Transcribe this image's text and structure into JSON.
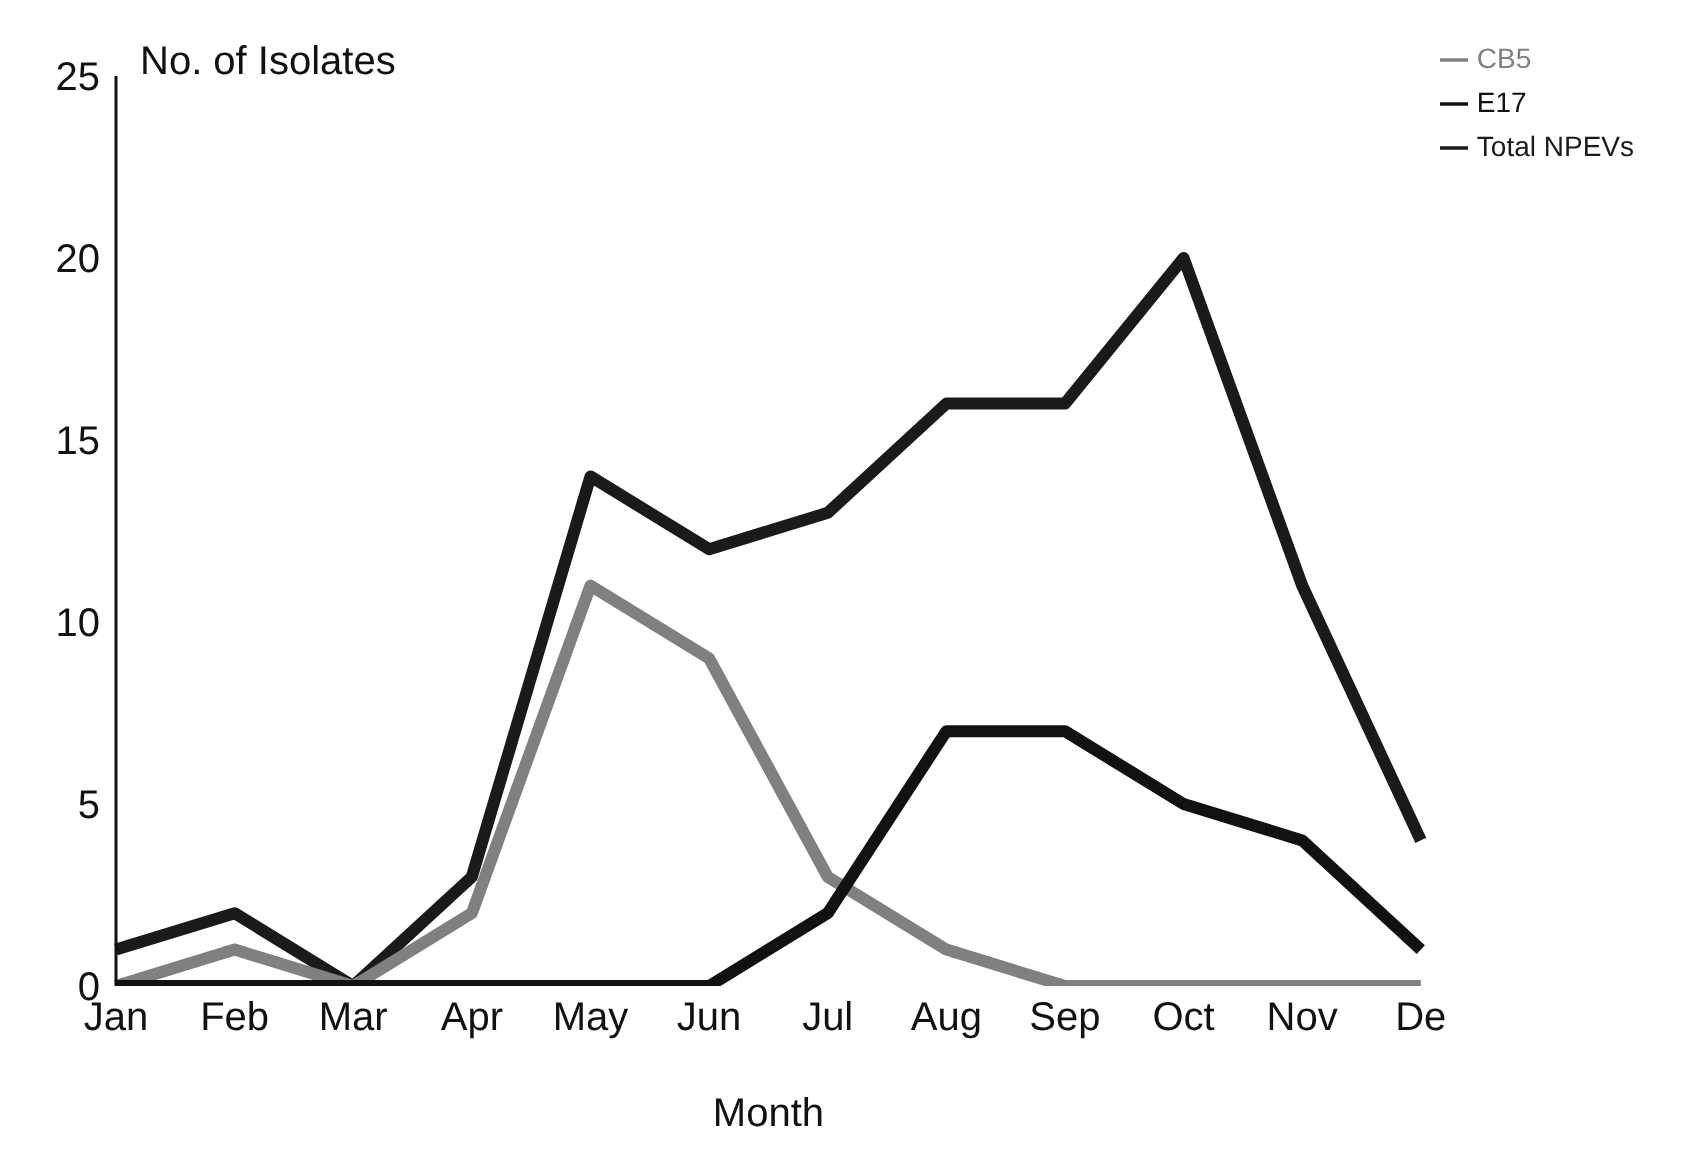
{
  "chart_data": {
    "type": "line",
    "xlabel": "Month",
    "ylabel": "No. of Isolates",
    "categories": [
      "Jan",
      "Feb",
      "Mar",
      "Apr",
      "May",
      "Jun",
      "Jul",
      "Aug",
      "Sep",
      "Oct",
      "Nov",
      "De"
    ],
    "series": [
      {
        "name": "Total NPEVs",
        "color": "#1a1a1a",
        "values": [
          1,
          2,
          0,
          3,
          14,
          12,
          13,
          16,
          16,
          20,
          11,
          4
        ]
      },
      {
        "name": "CB5",
        "color": "#808080",
        "values": [
          0,
          1,
          0,
          2,
          11,
          9,
          3,
          1,
          0,
          0,
          0,
          0
        ]
      },
      {
        "name": "E17",
        "color": "#111111",
        "values": [
          0,
          0,
          0,
          0,
          0,
          0,
          2,
          7,
          7,
          5,
          4,
          1
        ]
      }
    ],
    "ylim": [
      0,
      25
    ],
    "yticks": [
      0,
      5,
      10,
      15,
      20,
      25
    ],
    "grid": false,
    "legend": "top right",
    "marker": "none",
    "line_style": "solid"
  }
}
